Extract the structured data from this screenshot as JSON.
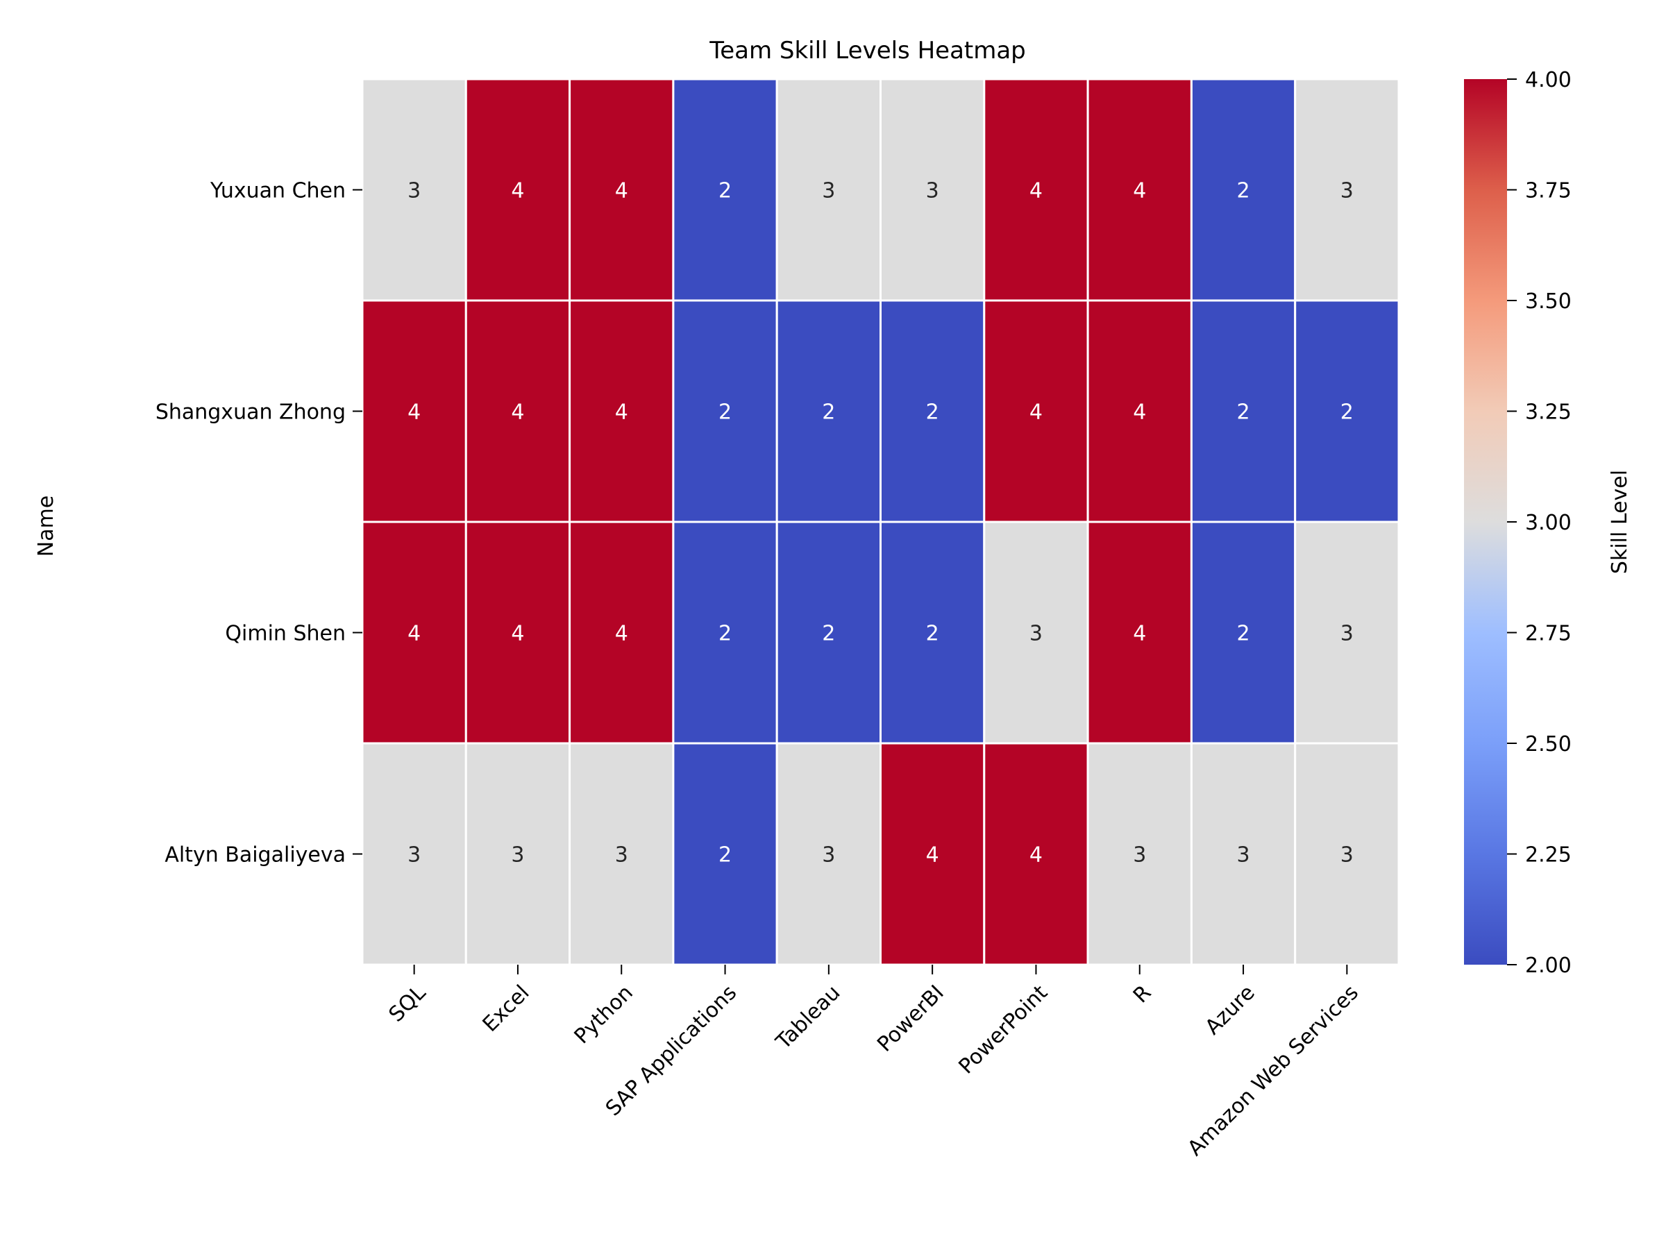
{
  "chart_data": {
    "type": "heatmap",
    "title": "Team Skill Levels Heatmap",
    "xlabel": "",
    "ylabel": "Name",
    "rows": [
      "Yuxuan Chen",
      "Shangxuan Zhong",
      "Qimin Shen",
      "Altyn Baigaliyeva"
    ],
    "columns": [
      "SQL",
      "Excel",
      "Python",
      "SAP Applications",
      "Tableau",
      "PowerBI",
      "PowerPoint",
      "R",
      "Azure",
      "Amazon Web Services"
    ],
    "values": [
      [
        3,
        4,
        4,
        2,
        3,
        3,
        4,
        4,
        2,
        3
      ],
      [
        4,
        4,
        4,
        2,
        2,
        2,
        4,
        4,
        2,
        2
      ],
      [
        4,
        4,
        4,
        2,
        2,
        2,
        3,
        4,
        2,
        3
      ],
      [
        3,
        3,
        3,
        2,
        3,
        4,
        4,
        3,
        3,
        3
      ]
    ],
    "annotate": true,
    "colormap": "coolwarm",
    "vmin": 2,
    "vmax": 4,
    "colorbar": {
      "label": "Skill Level",
      "ticks": [
        2.0,
        2.25,
        2.5,
        2.75,
        3.0,
        3.25,
        3.5,
        3.75,
        4.0
      ],
      "tick_labels": [
        "2.00",
        "2.25",
        "2.50",
        "2.75",
        "3.00",
        "3.25",
        "3.50",
        "3.75",
        "4.00"
      ],
      "placement": "right"
    },
    "colors": {
      "low": "#3b4cc0",
      "mid": "#dddddd",
      "high": "#b40426",
      "annotation_light": "#ffffff",
      "annotation_dark": "#262626",
      "grid": "#ffffff"
    }
  }
}
